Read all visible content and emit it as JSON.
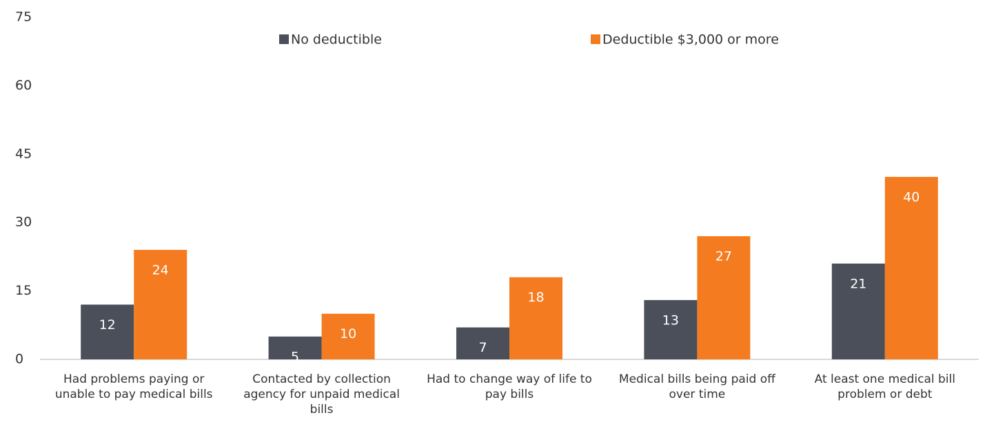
{
  "chart_data": {
    "type": "bar",
    "categories": [
      "Had problems paying or unable to pay medical bills",
      "Contacted by collection agency for unpaid medical bills",
      "Had to change way of life to pay bills",
      "Medical bills being paid off over time",
      "At least one medical bill problem or debt"
    ],
    "series": [
      {
        "name": "No deductible",
        "color": "#4a4f59",
        "values": [
          12,
          5,
          7,
          13,
          21
        ]
      },
      {
        "name": "Deductible $3,000 or more",
        "color": "#f47b20",
        "values": [
          24,
          10,
          18,
          27,
          40
        ]
      }
    ],
    "ylim": [
      0,
      75
    ],
    "yticks": [
      0,
      15,
      30,
      45,
      60,
      75
    ],
    "grid": false,
    "legend": "top"
  }
}
